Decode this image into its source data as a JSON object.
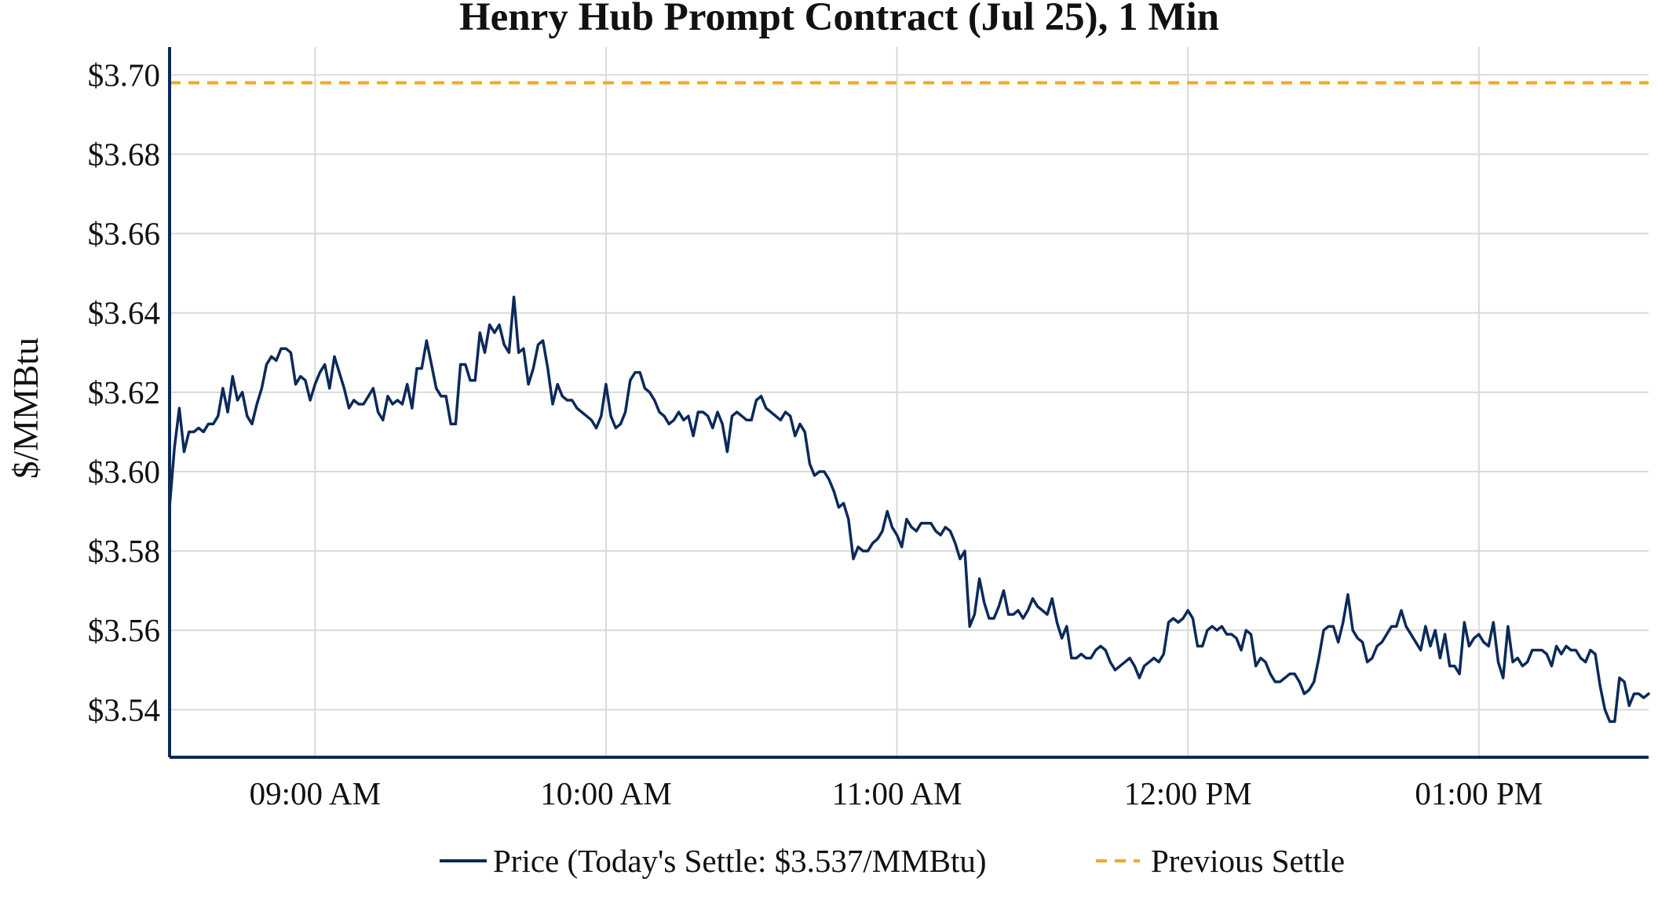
{
  "chart_data": {
    "type": "line",
    "title": "Henry Hub Prompt Contract (Jul 25), 1 Min",
    "xlabel": "",
    "ylabel": "$/MMBtu",
    "x_ticks": [
      "09:00 AM",
      "10:00 AM",
      "11:00 AM",
      "12:00 PM",
      "01:00 PM"
    ],
    "x_tick_minutes": [
      540,
      600,
      660,
      720,
      780
    ],
    "xlim_minutes": [
      510,
      815
    ],
    "y_ticks": [
      3.54,
      3.56,
      3.58,
      3.6,
      3.62,
      3.64,
      3.66,
      3.68,
      3.7
    ],
    "y_tick_labels": [
      "$3.54",
      "$3.56",
      "$3.58",
      "$3.60",
      "$3.62",
      "$3.64",
      "$3.66",
      "$3.68",
      "$3.70"
    ],
    "ylim": [
      3.528,
      3.707
    ],
    "grid": true,
    "legend_position": "bottom",
    "colors": {
      "price": "#0b2a5b",
      "previous_settle": "#f5a623",
      "grid": "#d9d9d9"
    },
    "series": [
      {
        "name": "Price (Today's Settle: $3.537/MMBtu)",
        "start_time": "08:30 AM",
        "interval": "1 min",
        "values": [
          3.591,
          3.606,
          3.616,
          3.605,
          3.61,
          3.61,
          3.611,
          3.61,
          3.612,
          3.612,
          3.614,
          3.621,
          3.615,
          3.624,
          3.618,
          3.62,
          3.614,
          3.612,
          3.617,
          3.621,
          3.627,
          3.629,
          3.628,
          3.631,
          3.631,
          3.63,
          3.622,
          3.624,
          3.623,
          3.618,
          3.622,
          3.625,
          3.627,
          3.621,
          3.629,
          3.625,
          3.621,
          3.616,
          3.618,
          3.617,
          3.617,
          3.619,
          3.621,
          3.615,
          3.613,
          3.619,
          3.617,
          3.618,
          3.617,
          3.622,
          3.616,
          3.626,
          3.626,
          3.633,
          3.627,
          3.621,
          3.619,
          3.619,
          3.612,
          3.612,
          3.627,
          3.627,
          3.623,
          3.623,
          3.635,
          3.63,
          3.637,
          3.635,
          3.637,
          3.632,
          3.63,
          3.644,
          3.63,
          3.631,
          3.622,
          3.626,
          3.632,
          3.633,
          3.626,
          3.617,
          3.622,
          3.619,
          3.618,
          3.618,
          3.616,
          3.615,
          3.614,
          3.613,
          3.611,
          3.614,
          3.622,
          3.614,
          3.611,
          3.612,
          3.615,
          3.623,
          3.625,
          3.625,
          3.621,
          3.62,
          3.618,
          3.615,
          3.614,
          3.612,
          3.613,
          3.615,
          3.613,
          3.614,
          3.609,
          3.615,
          3.615,
          3.614,
          3.611,
          3.615,
          3.612,
          3.605,
          3.614,
          3.615,
          3.614,
          3.613,
          3.613,
          3.618,
          3.619,
          3.616,
          3.615,
          3.614,
          3.613,
          3.615,
          3.614,
          3.609,
          3.612,
          3.61,
          3.602,
          3.599,
          3.6,
          3.6,
          3.598,
          3.595,
          3.591,
          3.592,
          3.588,
          3.578,
          3.581,
          3.58,
          3.58,
          3.582,
          3.583,
          3.585,
          3.59,
          3.586,
          3.584,
          3.581,
          3.588,
          3.586,
          3.585,
          3.587,
          3.587,
          3.587,
          3.585,
          3.584,
          3.586,
          3.585,
          3.582,
          3.578,
          3.58,
          3.561,
          3.564,
          3.573,
          3.567,
          3.563,
          3.563,
          3.566,
          3.57,
          3.564,
          3.564,
          3.565,
          3.563,
          3.565,
          3.568,
          3.566,
          3.565,
          3.564,
          3.568,
          3.562,
          3.558,
          3.561,
          3.553,
          3.553,
          3.554,
          3.553,
          3.553,
          3.555,
          3.556,
          3.555,
          3.552,
          3.55,
          3.551,
          3.552,
          3.553,
          3.551,
          3.548,
          3.551,
          3.552,
          3.553,
          3.552,
          3.554,
          3.562,
          3.563,
          3.562,
          3.563,
          3.565,
          3.563,
          3.556,
          3.556,
          3.56,
          3.561,
          3.56,
          3.561,
          3.559,
          3.559,
          3.558,
          3.555,
          3.56,
          3.559,
          3.551,
          3.553,
          3.552,
          3.549,
          3.547,
          3.547,
          3.548,
          3.549,
          3.549,
          3.547,
          3.544,
          3.545,
          3.547,
          3.553,
          3.56,
          3.561,
          3.561,
          3.557,
          3.562,
          3.569,
          3.56,
          3.558,
          3.557,
          3.552,
          3.553,
          3.556,
          3.557,
          3.559,
          3.561,
          3.561,
          3.565,
          3.561,
          3.559,
          3.557,
          3.555,
          3.561,
          3.556,
          3.56,
          3.553,
          3.559,
          3.551,
          3.551,
          3.549,
          3.562,
          3.556,
          3.558,
          3.559,
          3.557,
          3.556,
          3.562,
          3.552,
          3.548,
          3.561,
          3.552,
          3.553,
          3.551,
          3.552,
          3.555,
          3.555,
          3.555,
          3.554,
          3.551,
          3.556,
          3.554,
          3.556,
          3.555,
          3.555,
          3.553,
          3.552,
          3.555,
          3.554,
          3.546,
          3.54,
          3.537,
          3.537,
          3.548,
          3.547,
          3.541,
          3.544,
          3.544,
          3.543,
          3.544
        ]
      },
      {
        "name": "Previous Settle",
        "value": 3.698
      }
    ]
  }
}
